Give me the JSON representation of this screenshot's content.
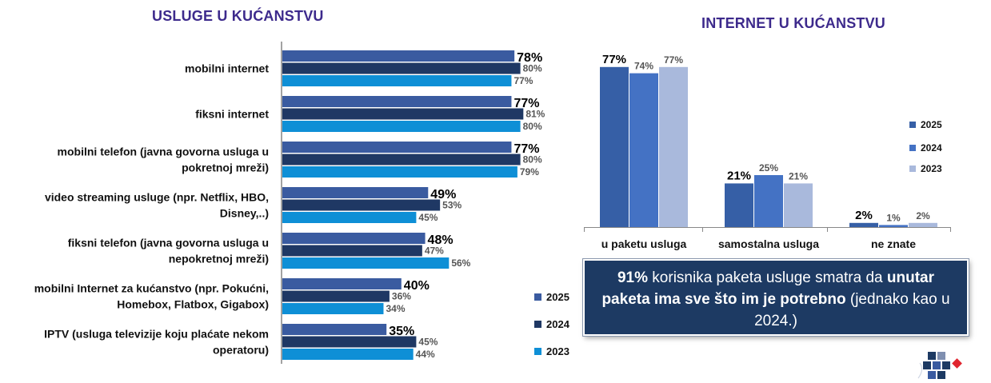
{
  "left_title": "USLUGE U KUĆANSTVU",
  "right_title": "INTERNET U KUĆANSTVU",
  "callout": {
    "part1_bold": "91%",
    "part2": " korisnika paketa usluge smatra da ",
    "part3_bold": "unutar paketa ima sve što im je potrebno",
    "part4": " (jednako kao u 2024.)"
  },
  "chart_data": [
    {
      "type": "bar",
      "orientation": "horizontal",
      "title": "USLUGE U KUĆANSTVU",
      "categories": [
        [
          "mobilni internet"
        ],
        [
          "fiksni internet"
        ],
        [
          "mobilni telefon (javna govorna usluga u",
          "pokretnoj mreži)"
        ],
        [
          "video streaming usluge (npr. Netflix, HBO,",
          "Disney,..)"
        ],
        [
          "fiksni telefon (javna govorna usluga u",
          "nepokretnoj mreži)"
        ],
        [
          "mobilni Internet za kućanstvo (npr. Pokućni,",
          "Homebox, Flatbox, Gigabox)"
        ],
        [
          "IPTV (usluga televizije koju plaćate nekom",
          "operatoru)"
        ]
      ],
      "series": [
        {
          "name": "2025",
          "color": "#3a5ba0",
          "values": [
            78,
            77,
            77,
            49,
            48,
            40,
            35
          ],
          "labels": [
            "78%",
            "77%",
            "77%",
            "49%",
            "48%",
            "40%",
            "35%"
          ]
        },
        {
          "name": "2024",
          "color": "#1f3864",
          "values": [
            80,
            81,
            80,
            53,
            47,
            36,
            45
          ],
          "labels": [
            "80%",
            "81%",
            "80%",
            "53%",
            "47%",
            "36%",
            "45%"
          ]
        },
        {
          "name": "2023",
          "color": "#0e8fd6",
          "values": [
            77,
            80,
            79,
            45,
            56,
            34,
            44
          ],
          "labels": [
            "77%",
            "80%",
            "79%",
            "45%",
            "56%",
            "34%",
            "44%"
          ]
        }
      ],
      "xlim": [
        0,
        100
      ],
      "legend": "bottom-right"
    },
    {
      "type": "bar",
      "title": "INTERNET U KUĆANSTVU",
      "categories": [
        "u paketu usluga",
        "samostalna usluga",
        "ne znate"
      ],
      "series": [
        {
          "name": "2025",
          "color": "#365fa6",
          "values": [
            77,
            21,
            2
          ],
          "labels": [
            "77%",
            "21%",
            "2%"
          ]
        },
        {
          "name": "2024",
          "color": "#4472c4",
          "values": [
            74,
            25,
            1
          ],
          "labels": [
            "74%",
            "25%",
            "1%"
          ]
        },
        {
          "name": "2023",
          "color": "#a9b9dc",
          "values": [
            77,
            21,
            2
          ],
          "labels": [
            "77%",
            "21%",
            "2%"
          ]
        }
      ],
      "ylim": [
        0,
        100
      ],
      "legend": "right"
    }
  ]
}
